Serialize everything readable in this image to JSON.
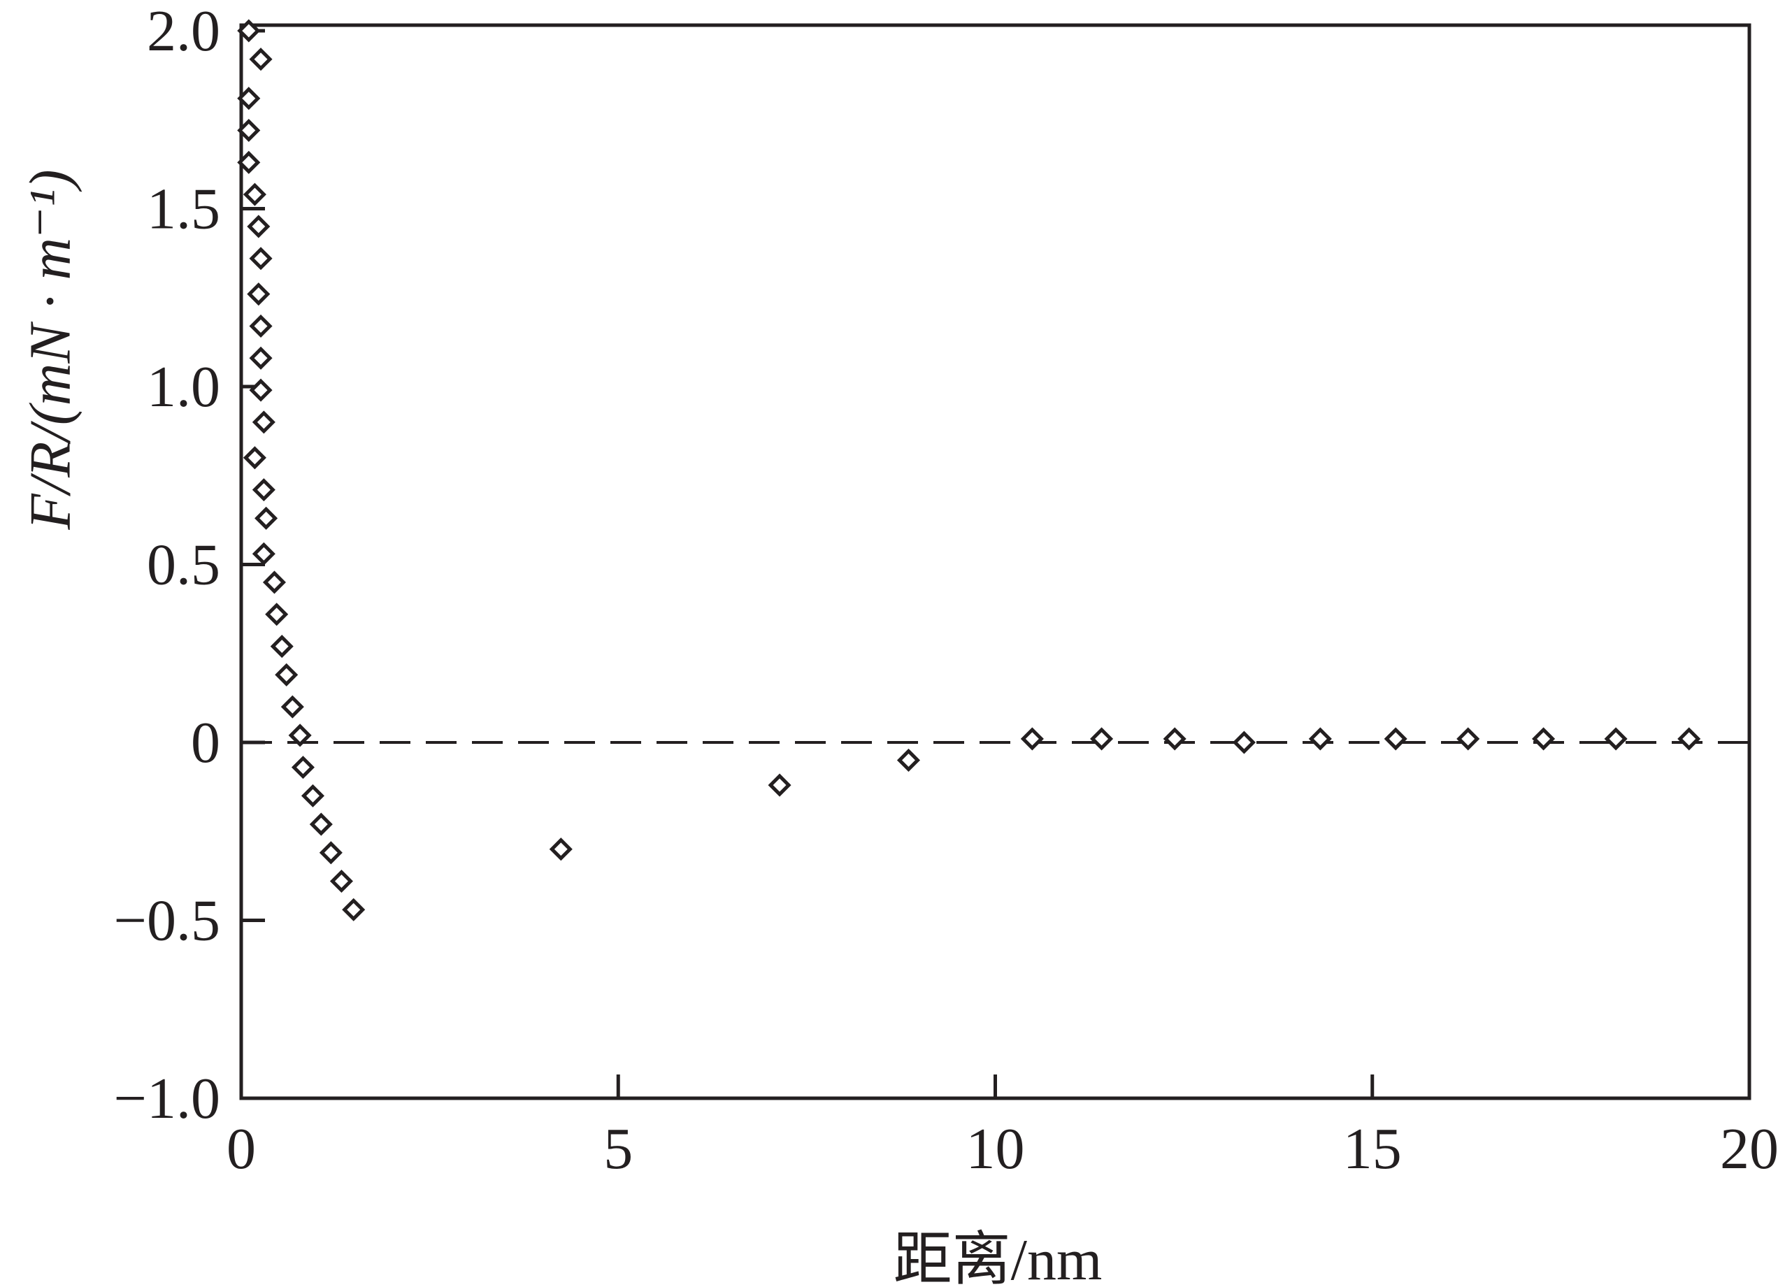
{
  "chart_data": {
    "type": "scatter",
    "x_label": "距离/nm",
    "y_label": "F/R/(mN · m⁻¹)",
    "xlim": [
      0,
      20
    ],
    "xticks": [
      0,
      5,
      10,
      15,
      20
    ],
    "ylim": [
      -1,
      2
    ],
    "yticks": [
      {
        "value": -1,
        "label": "−1.0"
      },
      {
        "value": -0.5,
        "label": "−0.5"
      },
      0,
      {
        "value": 0.5,
        "label": "0.5"
      },
      {
        "value": 1,
        "label": "1.0"
      },
      {
        "value": 1.5,
        "label": "1.5"
      },
      {
        "value": 2,
        "label": "2.0"
      }
    ],
    "reference_line": 0,
    "color": "#231f20",
    "x": [
      0.1,
      0.26,
      0.1,
      0.1,
      0.1,
      0.18,
      0.23,
      0.26,
      0.23,
      0.26,
      0.26,
      0.26,
      0.3,
      0.18,
      0.3,
      0.33,
      0.3,
      0.44,
      0.47,
      0.54,
      0.6,
      0.68,
      0.78,
      0.82,
      0.95,
      1.06,
      1.19,
      1.33,
      1.49,
      4.24,
      7.14,
      8.85,
      10.49,
      11.41,
      12.38,
      13.3,
      14.31,
      15.31,
      16.27,
      17.27,
      18.23,
      19.2
    ],
    "values": [
      2.0,
      1.92,
      1.81,
      1.72,
      1.63,
      1.54,
      1.45,
      1.36,
      1.26,
      1.17,
      1.08,
      0.99,
      0.9,
      0.8,
      0.71,
      0.63,
      0.53,
      0.45,
      0.36,
      0.27,
      0.19,
      0.1,
      0.02,
      -0.07,
      -0.15,
      -0.23,
      -0.31,
      -0.39,
      -0.47,
      -0.3,
      -0.12,
      -0.05,
      0.01,
      0.01,
      0.01,
      0,
      0.01,
      0.01,
      0.01,
      0.01,
      0.01,
      0.01
    ]
  }
}
